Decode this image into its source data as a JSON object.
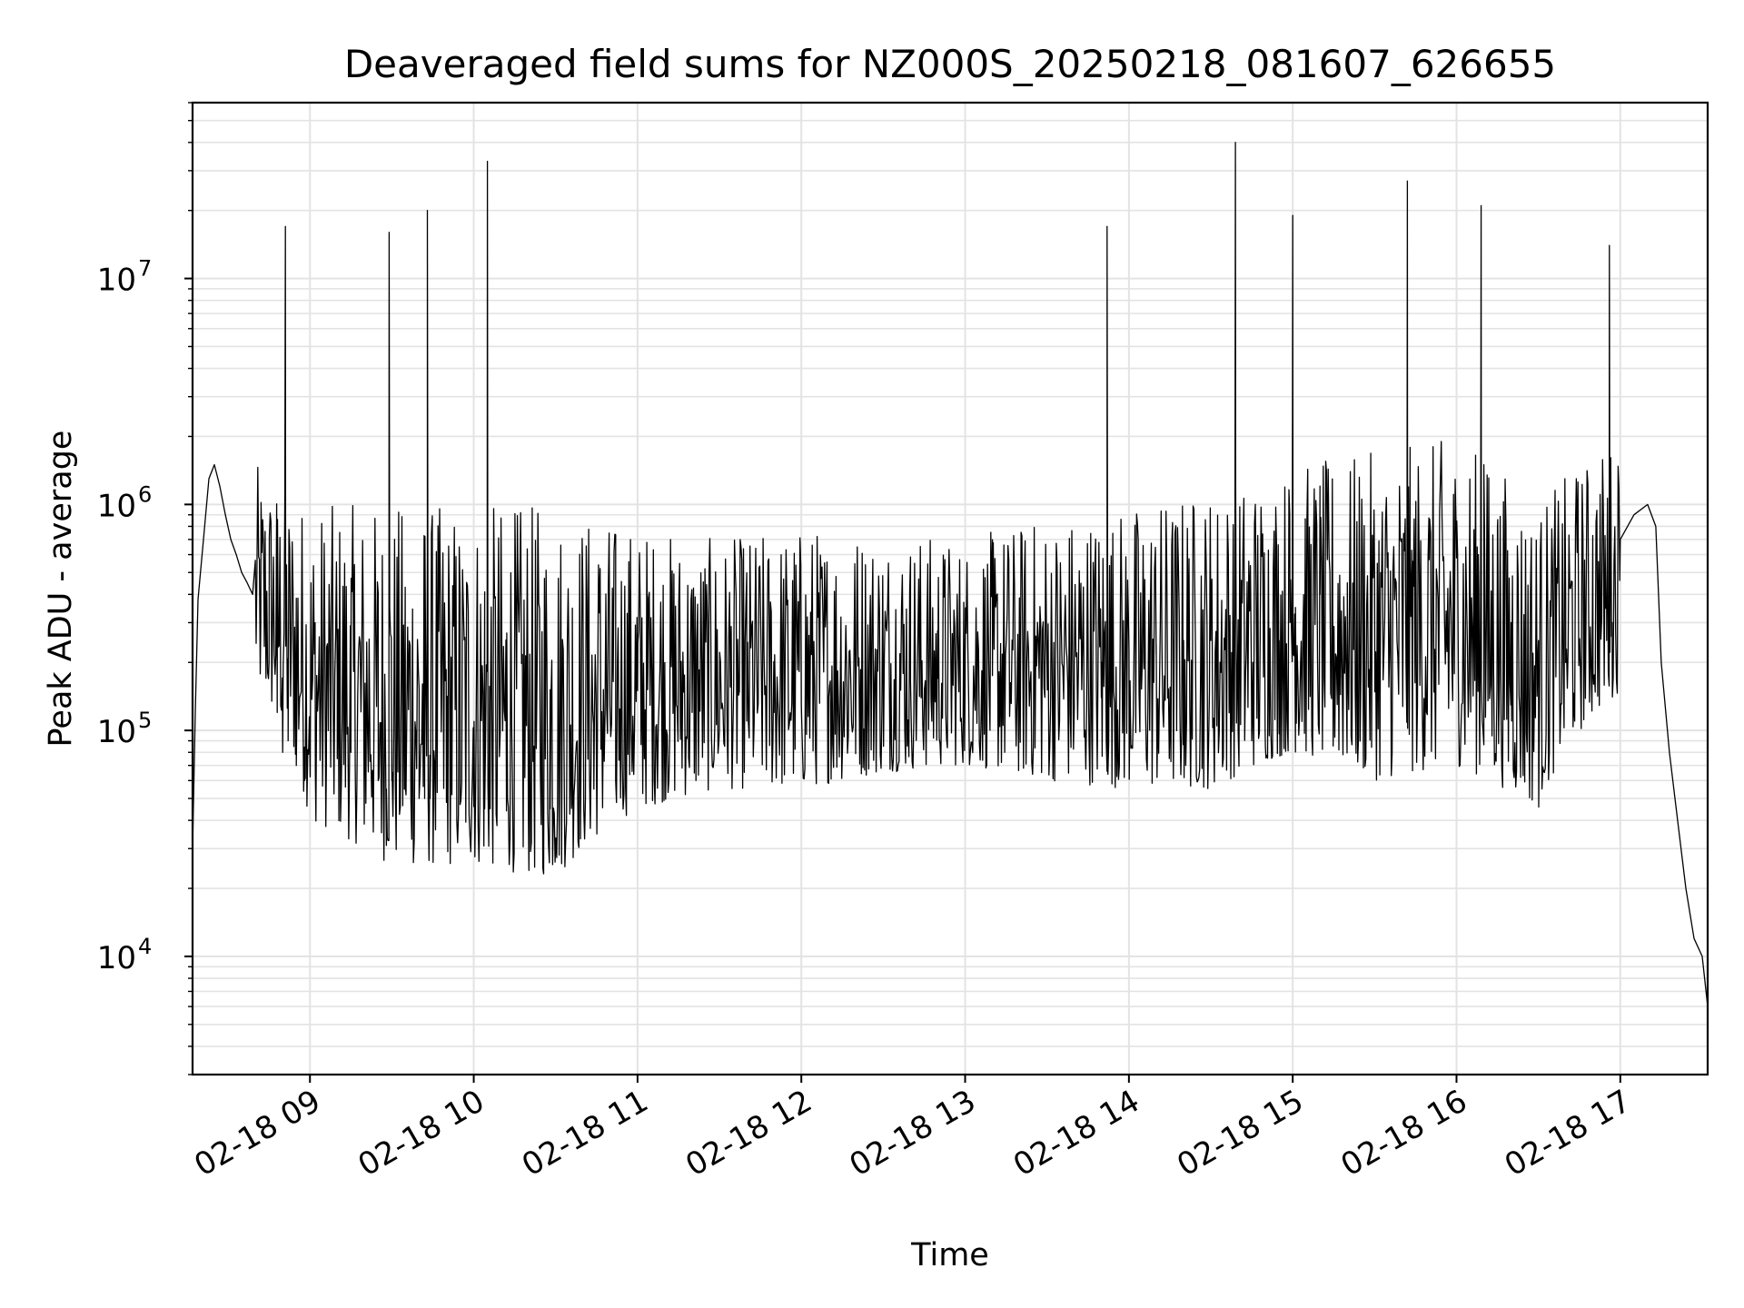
{
  "chart_data": {
    "type": "line",
    "title": "Deaveraged field sums for NZ000S_20250218_081607_626655",
    "xlabel": "Time",
    "ylabel": "Peak ADU - average",
    "yscale": "log",
    "ylim": [
      3000,
      60000000
    ],
    "xlim": [
      "2025-02-18 08:17",
      "2025-02-18 17:32"
    ],
    "grid": true,
    "line_color": "#000000",
    "x_ticks": [
      {
        "value": "2025-02-18 09:00",
        "label": "02-18 09"
      },
      {
        "value": "2025-02-18 10:00",
        "label": "02-18 10"
      },
      {
        "value": "2025-02-18 11:00",
        "label": "02-18 11"
      },
      {
        "value": "2025-02-18 12:00",
        "label": "02-18 12"
      },
      {
        "value": "2025-02-18 13:00",
        "label": "02-18 13"
      },
      {
        "value": "2025-02-18 14:00",
        "label": "02-18 14"
      },
      {
        "value": "2025-02-18 15:00",
        "label": "02-18 15"
      },
      {
        "value": "2025-02-18 16:00",
        "label": "02-18 16"
      },
      {
        "value": "2025-02-18 17:00",
        "label": "02-18 17"
      }
    ],
    "y_ticks": [
      {
        "value": 10000,
        "base": "10",
        "exp": "4"
      },
      {
        "value": 100000,
        "base": "10",
        "exp": "5"
      },
      {
        "value": 1000000,
        "base": "10",
        "exp": "6"
      },
      {
        "value": 10000000,
        "base": "10",
        "exp": "7"
      }
    ],
    "series": [
      {
        "x": [
          "2025-02-18 08:17",
          "2025-02-18 08:18",
          "2025-02-18 08:19",
          "2025-02-18 08:21",
          "2025-02-18 08:23",
          "2025-02-18 08:25",
          "2025-02-18 08:27",
          "2025-02-18 08:29",
          "2025-02-18 08:31",
          "2025-02-18 08:33",
          "2025-02-18 08:35",
          "2025-02-18 08:37",
          "2025-02-18 08:39",
          "2025-02-18 08:42",
          "2025-02-18 08:45",
          "2025-02-18 08:48",
          "2025-02-18 08:50",
          "2025-02-18 08:51",
          "2025-02-18 08:52",
          "2025-02-18 08:55",
          "2025-02-18 08:58",
          "2025-02-18 09:02",
          "2025-02-18 09:06",
          "2025-02-18 09:10",
          "2025-02-18 09:15",
          "2025-02-18 09:20",
          "2025-02-18 09:25",
          "2025-02-18 09:28",
          "2025-02-18 09:29",
          "2025-02-18 09:30",
          "2025-02-18 09:35",
          "2025-02-18 09:40",
          "2025-02-18 09:42",
          "2025-02-18 09:43",
          "2025-02-18 09:44",
          "2025-02-18 09:50",
          "2025-02-18 09:55",
          "2025-02-18 10:00",
          "2025-02-18 10:04",
          "2025-02-18 10:05",
          "2025-02-18 10:06",
          "2025-02-18 10:12",
          "2025-02-18 10:20",
          "2025-02-18 10:28",
          "2025-02-18 10:36",
          "2025-02-18 10:44",
          "2025-02-18 10:52",
          "2025-02-18 11:00",
          "2025-02-18 11:10",
          "2025-02-18 11:20",
          "2025-02-18 11:30",
          "2025-02-18 11:40",
          "2025-02-18 11:50",
          "2025-02-18 12:00",
          "2025-02-18 12:10",
          "2025-02-18 12:20",
          "2025-02-18 12:30",
          "2025-02-18 12:40",
          "2025-02-18 12:50",
          "2025-02-18 13:00",
          "2025-02-18 13:10",
          "2025-02-18 13:20",
          "2025-02-18 13:30",
          "2025-02-18 13:40",
          "2025-02-18 13:50",
          "2025-02-18 13:52",
          "2025-02-18 13:53",
          "2025-02-18 13:54",
          "2025-02-18 14:00",
          "2025-02-18 14:10",
          "2025-02-18 14:20",
          "2025-02-18 14:30",
          "2025-02-18 14:38",
          "2025-02-18 14:39",
          "2025-02-18 14:40",
          "2025-02-18 14:45",
          "2025-02-18 14:50",
          "2025-02-18 14:55",
          "2025-02-18 14:59",
          "2025-02-18 15:00",
          "2025-02-18 15:01",
          "2025-02-18 15:10",
          "2025-02-18 15:20",
          "2025-02-18 15:30",
          "2025-02-18 15:40",
          "2025-02-18 15:42",
          "2025-02-18 15:43",
          "2025-02-18 15:44",
          "2025-02-18 15:50",
          "2025-02-18 16:00",
          "2025-02-18 16:08",
          "2025-02-18 16:09",
          "2025-02-18 16:10",
          "2025-02-18 16:15",
          "2025-02-18 16:20",
          "2025-02-18 16:30",
          "2025-02-18 16:40",
          "2025-02-18 16:50",
          "2025-02-18 16:55",
          "2025-02-18 16:56",
          "2025-02-18 16:57",
          "2025-02-18 17:00",
          "2025-02-18 17:05",
          "2025-02-18 17:10",
          "2025-02-18 17:13",
          "2025-02-18 17:15",
          "2025-02-18 17:18",
          "2025-02-18 17:21",
          "2025-02-18 17:24",
          "2025-02-18 17:27",
          "2025-02-18 17:30",
          "2025-02-18 17:32"
        ],
        "y": [
          30000,
          120000,
          380000,
          700000,
          1300000,
          1500000,
          1200000,
          900000,
          700000,
          600000,
          500000,
          450000,
          400000,
          300000,
          200000,
          120000,
          80000,
          17000000,
          90000,
          70000,
          60000,
          65000,
          70000,
          75000,
          80000,
          70000,
          60000,
          55000,
          16000000,
          60000,
          55000,
          50000,
          50000,
          20000000,
          50000,
          48000,
          47000,
          46000,
          45000,
          33000000,
          45000,
          44000,
          43000,
          45000,
          50000,
          55000,
          60000,
          150000,
          180000,
          120000,
          100000,
          110000,
          120000,
          130000,
          140000,
          150000,
          160000,
          165000,
          170000,
          170000,
          175000,
          180000,
          190000,
          200000,
          200000,
          17000000,
          210000,
          220000,
          230000,
          240000,
          250000,
          250000,
          260000,
          40000000,
          100000,
          90000,
          85000,
          250000,
          300000,
          19000000,
          350000,
          400000,
          450000,
          500000,
          520000,
          27000000,
          550000,
          560000,
          570000,
          580000,
          600000,
          21000000,
          1500000,
          800000,
          300000,
          250000,
          200000,
          180000,
          250000,
          14000000,
          300000,
          700000,
          900000,
          1000000,
          800000,
          200000,
          80000,
          40000,
          20000,
          12000,
          10000,
          6000
        ],
        "y_band": [
          {
            "x": "2025-02-18 08:40",
            "low": 150000,
            "high": 1500000
          },
          {
            "x": "2025-02-18 09:00",
            "low": 40000,
            "high": 1000000
          },
          {
            "x": "2025-02-18 09:30",
            "low": 25000,
            "high": 1000000
          },
          {
            "x": "2025-02-18 10:00",
            "low": 25000,
            "high": 1000000
          },
          {
            "x": "2025-02-18 10:30",
            "low": 22000,
            "high": 1000000
          },
          {
            "x": "2025-02-18 11:00",
            "low": 45000,
            "high": 800000
          },
          {
            "x": "2025-02-18 11:30",
            "low": 55000,
            "high": 700000
          },
          {
            "x": "2025-02-18 12:00",
            "low": 55000,
            "high": 800000
          },
          {
            "x": "2025-02-18 12:30",
            "low": 65000,
            "high": 800000
          },
          {
            "x": "2025-02-18 13:00",
            "low": 70000,
            "high": 700000
          },
          {
            "x": "2025-02-18 13:30",
            "low": 60000,
            "high": 900000
          },
          {
            "x": "2025-02-18 14:00",
            "low": 55000,
            "high": 1000000
          },
          {
            "x": "2025-02-18 14:30",
            "low": 55000,
            "high": 1200000
          },
          {
            "x": "2025-02-18 15:00",
            "low": 80000,
            "high": 1500000
          },
          {
            "x": "2025-02-18 15:30",
            "low": 60000,
            "high": 1700000
          },
          {
            "x": "2025-02-18 16:00",
            "low": 70000,
            "high": 2000000
          },
          {
            "x": "2025-02-18 16:30",
            "low": 45000,
            "high": 1000000
          },
          {
            "x": "2025-02-18 17:00",
            "low": 150000,
            "high": 2000000
          }
        ]
      }
    ]
  }
}
